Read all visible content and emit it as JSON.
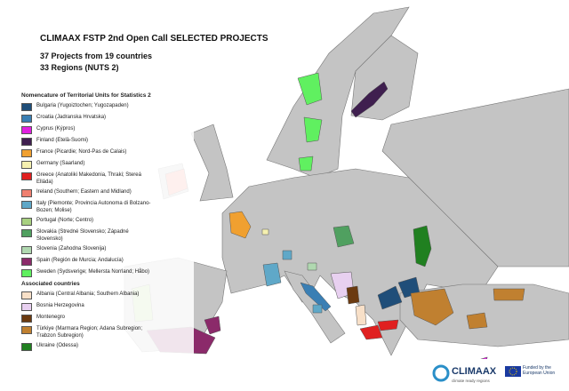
{
  "header": {
    "title": "CLIMAAX FSTP 2nd Open Call SELECTED PROJECTS",
    "subtitle1": "37 Projects from 19 countries",
    "subtitle2": "33 Regions (NUTS 2)"
  },
  "legend": {
    "nuts_heading": "Nomencature of Territorial Units for Statistics 2",
    "nuts": [
      {
        "label": "Bulgaria (Yugoiztochen; Yugozapaden)",
        "color": "#1f4e79"
      },
      {
        "label": "Croatia (Jadranska Hrvatska)",
        "color": "#3a7fb4"
      },
      {
        "label": "Cyprus (Kýpros)",
        "color": "#e020e0"
      },
      {
        "label": "Finland (Etelä-Suomi)",
        "color": "#3f1f4f"
      },
      {
        "label": "France (Picardie; Nord-Pas de Calais)",
        "color": "#f0a030"
      },
      {
        "label": "Germany (Saarland)",
        "color": "#f5f0b0"
      },
      {
        "label": "Greece (Anatoliki Makedonia, Thraki; Stereá Elláda)",
        "color": "#e02020"
      },
      {
        "label": "Ireland (Southern; Eastern and Midland)",
        "color": "#f08070"
      },
      {
        "label": "Italy (Piemonte; Provincia Autonoma di Bolzano-Bozen; Molise)",
        "color": "#5fa8c8"
      },
      {
        "label": "Portugal (Norte; Centro)",
        "color": "#a8d080"
      },
      {
        "label": "Slovakia (Stredné Slovensko; Západné Slovensko)",
        "color": "#50a060"
      },
      {
        "label": "Slovenia (Zahodna Slovenija)",
        "color": "#b0d8b0"
      },
      {
        "label": "Spain (Región de Murcia; Andalucía)",
        "color": "#8b2a6a"
      },
      {
        "label": "Sweden (Sydsverige; Mellersta Norrland; Håbo)",
        "color": "#60f060"
      }
    ],
    "associated_heading": "Associated countries",
    "associated": [
      {
        "label": "Albania (Central Albania; Southern Albania)",
        "color": "#f8e0c8"
      },
      {
        "label": "Bosnia Herzegovina",
        "color": "#e8d0f0"
      },
      {
        "label": "Montenegro",
        "color": "#6b3a10"
      },
      {
        "label": "Türkiye (Marmara Region; Adana Subregion; Trabzon Subregion)",
        "color": "#c08030"
      },
      {
        "label": "Ukraine (Odessa)",
        "color": "#208020"
      }
    ]
  },
  "footer": {
    "logo": "CLIMAAX",
    "tagline": "climate ready regions",
    "eu": "Funded by the European Union"
  }
}
